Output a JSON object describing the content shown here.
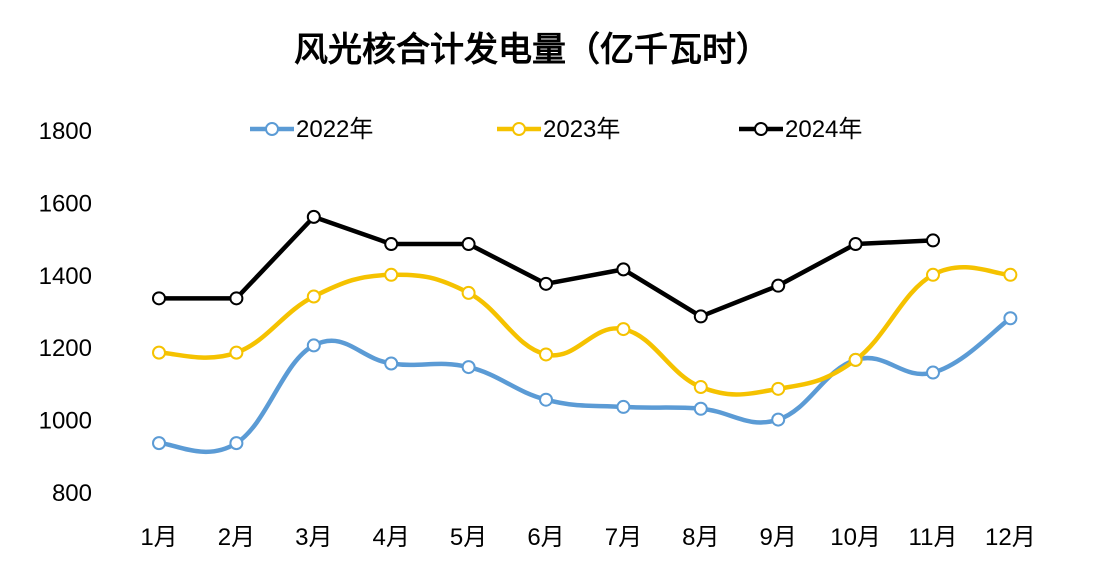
{
  "chart_data": {
    "type": "line",
    "title": "风光核合计发电量（亿千瓦时）",
    "categories": [
      "1月",
      "2月",
      "3月",
      "4月",
      "5月",
      "6月",
      "7月",
      "8月",
      "9月",
      "10月",
      "11月",
      "12月"
    ],
    "ylim": [
      800,
      1800
    ],
    "yticks": [
      "800",
      "1000",
      "1200",
      "1400",
      "1600",
      "1800"
    ],
    "grid": false,
    "legend_position": "top",
    "series": [
      {
        "name": "2022年",
        "color": "#5B9BD5",
        "values": [
          935,
          935,
          1205,
          1155,
          1145,
          1055,
          1035,
          1030,
          1000,
          1165,
          1130,
          1280
        ]
      },
      {
        "name": "2023年",
        "color": "#F5C200",
        "values": [
          1185,
          1185,
          1340,
          1400,
          1350,
          1180,
          1250,
          1090,
          1085,
          1165,
          1400,
          1400
        ]
      },
      {
        "name": "2024年",
        "color": "#000000",
        "values": [
          1335,
          1335,
          1560,
          1485,
          1485,
          1375,
          1415,
          1285,
          1370,
          1485,
          1495,
          null
        ]
      }
    ]
  }
}
